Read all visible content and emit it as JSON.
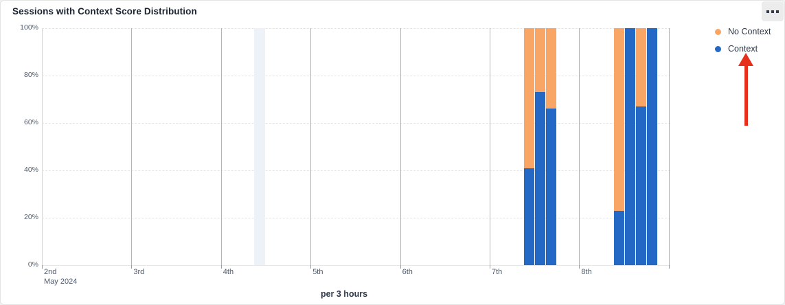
{
  "card": {
    "title": "Sessions with Context Score Distribution"
  },
  "chart_data": {
    "type": "bar",
    "stacked": true,
    "title": "Sessions with Context Score Distribution",
    "xlabel": "per 3 hours",
    "ylabel": "",
    "ylim": [
      0,
      100
    ],
    "y_tick_labels": [
      "100%",
      "80%",
      "60%",
      "40%",
      "20%",
      "0%"
    ],
    "x_tick_labels": [
      "2nd",
      "3rd",
      "4th",
      "5th",
      "6th",
      "7th",
      "8th"
    ],
    "x_start_sublabel": "May 2024",
    "num_day_ticks": 8,
    "grid": {
      "horizontal": "dashed",
      "vertical": "solid"
    },
    "legend_position": "top-right",
    "series": [
      {
        "name": "Context",
        "color": "#2368c4",
        "values": [
          41,
          73,
          66,
          23,
          100,
          67,
          100
        ]
      },
      {
        "name": "No Context",
        "color": "#f8a566",
        "values": [
          59,
          27,
          34,
          77,
          0,
          33,
          0
        ]
      }
    ],
    "legend_items": [
      {
        "label": "No Context",
        "color": "#f8a566"
      },
      {
        "label": "Context",
        "color": "#2368c4"
      }
    ],
    "bars": [
      {
        "day": "7th",
        "x_pct": 76.72,
        "context": 41,
        "no_context": 59
      },
      {
        "day": "7th",
        "x_pct": 78.47,
        "context": 73,
        "no_context": 27
      },
      {
        "day": "7th",
        "x_pct": 80.22,
        "context": 66,
        "no_context": 34
      },
      {
        "day": "8th",
        "x_pct": 91.04,
        "context": 23,
        "no_context": 77
      },
      {
        "day": "8th",
        "x_pct": 92.79,
        "context": 100,
        "no_context": 0
      },
      {
        "day": "8th",
        "x_pct": 94.54,
        "context": 67,
        "no_context": 33
      },
      {
        "day": "8th",
        "x_pct": 96.28,
        "context": 100,
        "no_context": 0
      }
    ],
    "bar_width_pct": 1.64,
    "highlight_band": {
      "x_pct": 33.77,
      "width_pct": 1.75,
      "color": "#edf2f8"
    }
  },
  "annotation": {
    "type": "up-arrow",
    "color": "#e7301c",
    "target": "Context legend item"
  }
}
